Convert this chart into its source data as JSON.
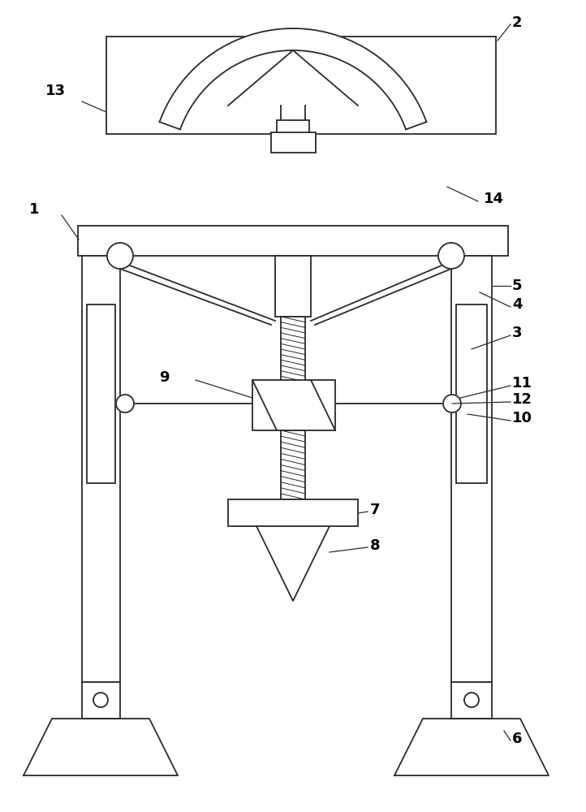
{
  "bg_color": "#ffffff",
  "line_color": "#2a2a2a",
  "label_color": "#000000",
  "figsize": [
    7.22,
    10.0
  ],
  "dpi": 100
}
